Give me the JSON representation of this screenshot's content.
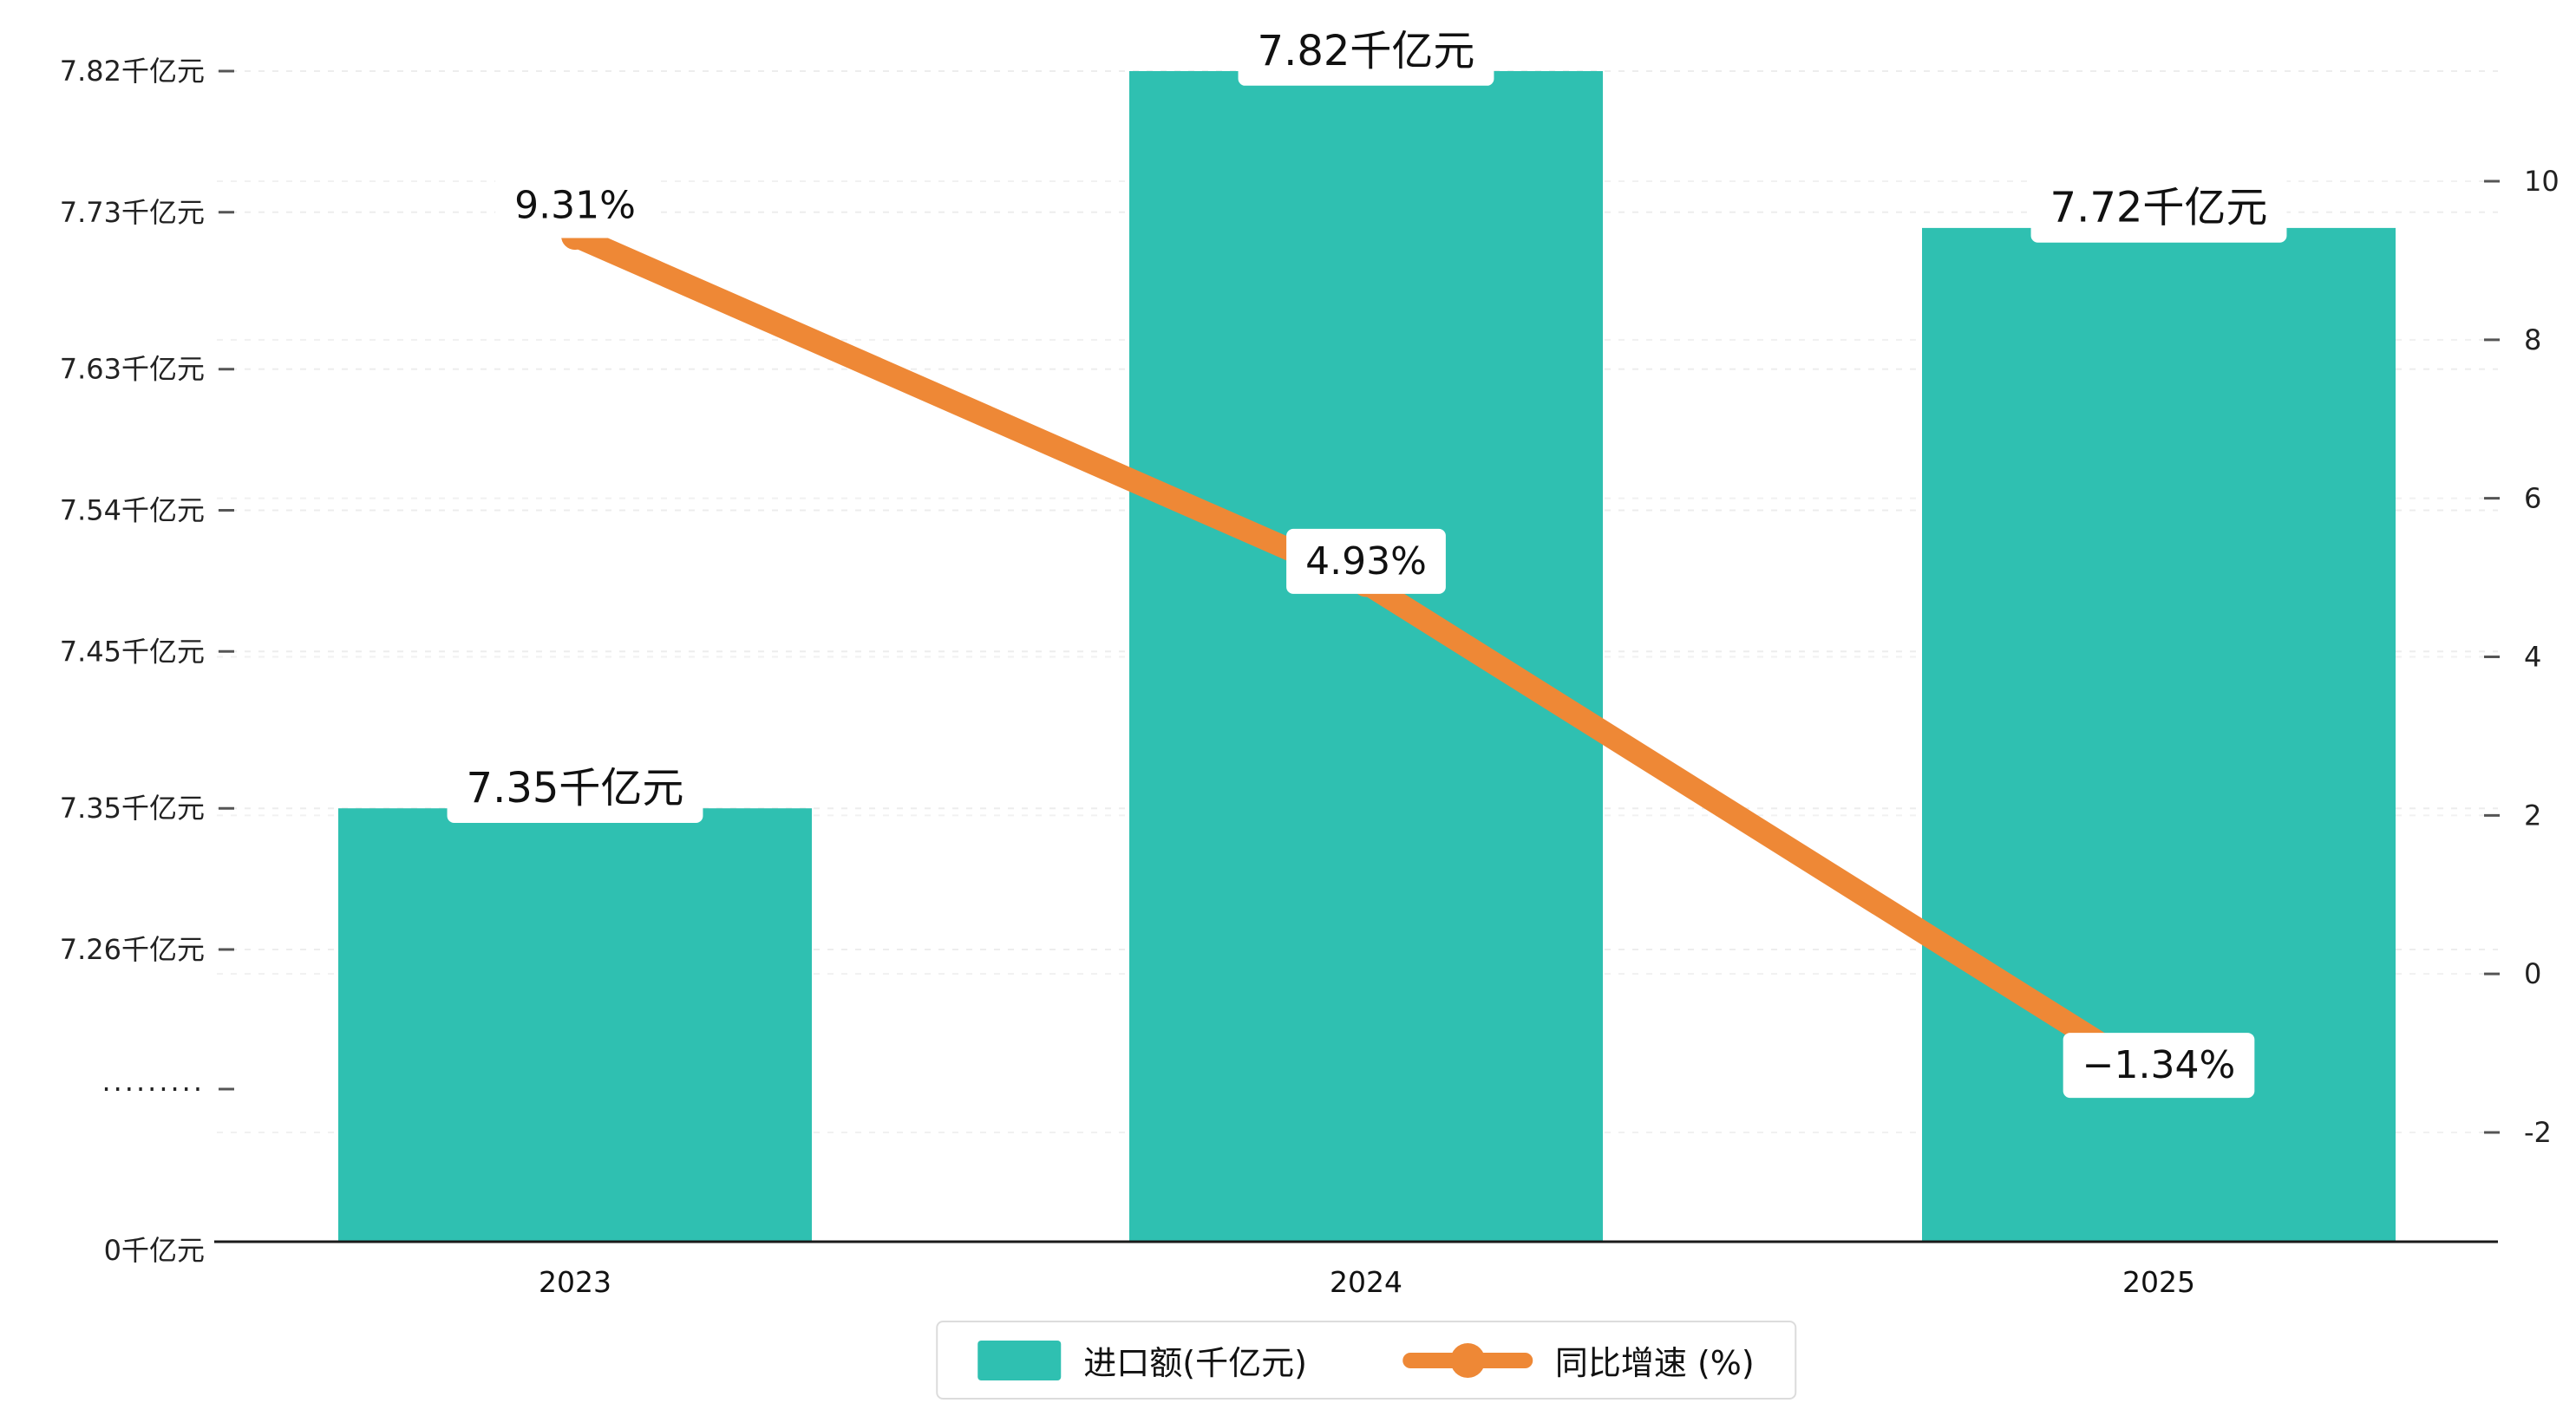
{
  "page": {
    "background": "#ffffff"
  },
  "chart_data": {
    "type": "bar",
    "subtype": "combo-bar-line-dual-axis",
    "title": "",
    "categories": [
      "2023",
      "2024",
      "2025"
    ],
    "series": [
      {
        "name": "进口额(千亿元)",
        "type": "bar",
        "color": "#2fc0b1",
        "values": [
          7.35,
          7.82,
          7.72
        ],
        "value_labels": [
          "7.35千亿元",
          "7.82千亿元",
          "7.72千亿元"
        ]
      },
      {
        "name": "同比增速 (%)",
        "type": "line",
        "color": "#ee8836",
        "values": [
          9.31,
          4.93,
          -1.34
        ],
        "value_labels": [
          "9.31%",
          "4.93%",
          "−1.34%"
        ]
      }
    ],
    "left_axis": {
      "unit": "千亿元",
      "tick_labels": [
        "7.82千亿元",
        "7.73千亿元",
        "7.63千亿元",
        "7.54千亿元",
        "7.45千亿元",
        "7.35千亿元",
        "7.26千亿元"
      ],
      "tick_values": [
        7.82,
        7.73,
        7.63,
        7.54,
        7.45,
        7.35,
        7.26
      ],
      "axis_break": true,
      "break_label": "·········",
      "zero_label": "0千亿元"
    },
    "right_axis": {
      "min": -2,
      "max": 10,
      "step": 2,
      "tick_labels": [
        "10",
        "8",
        "6",
        "4",
        "2",
        "0",
        "-2"
      ],
      "tick_values": [
        10,
        8,
        6,
        4,
        2,
        0,
        -2
      ]
    },
    "grid": true,
    "legend_position": "bottom"
  }
}
